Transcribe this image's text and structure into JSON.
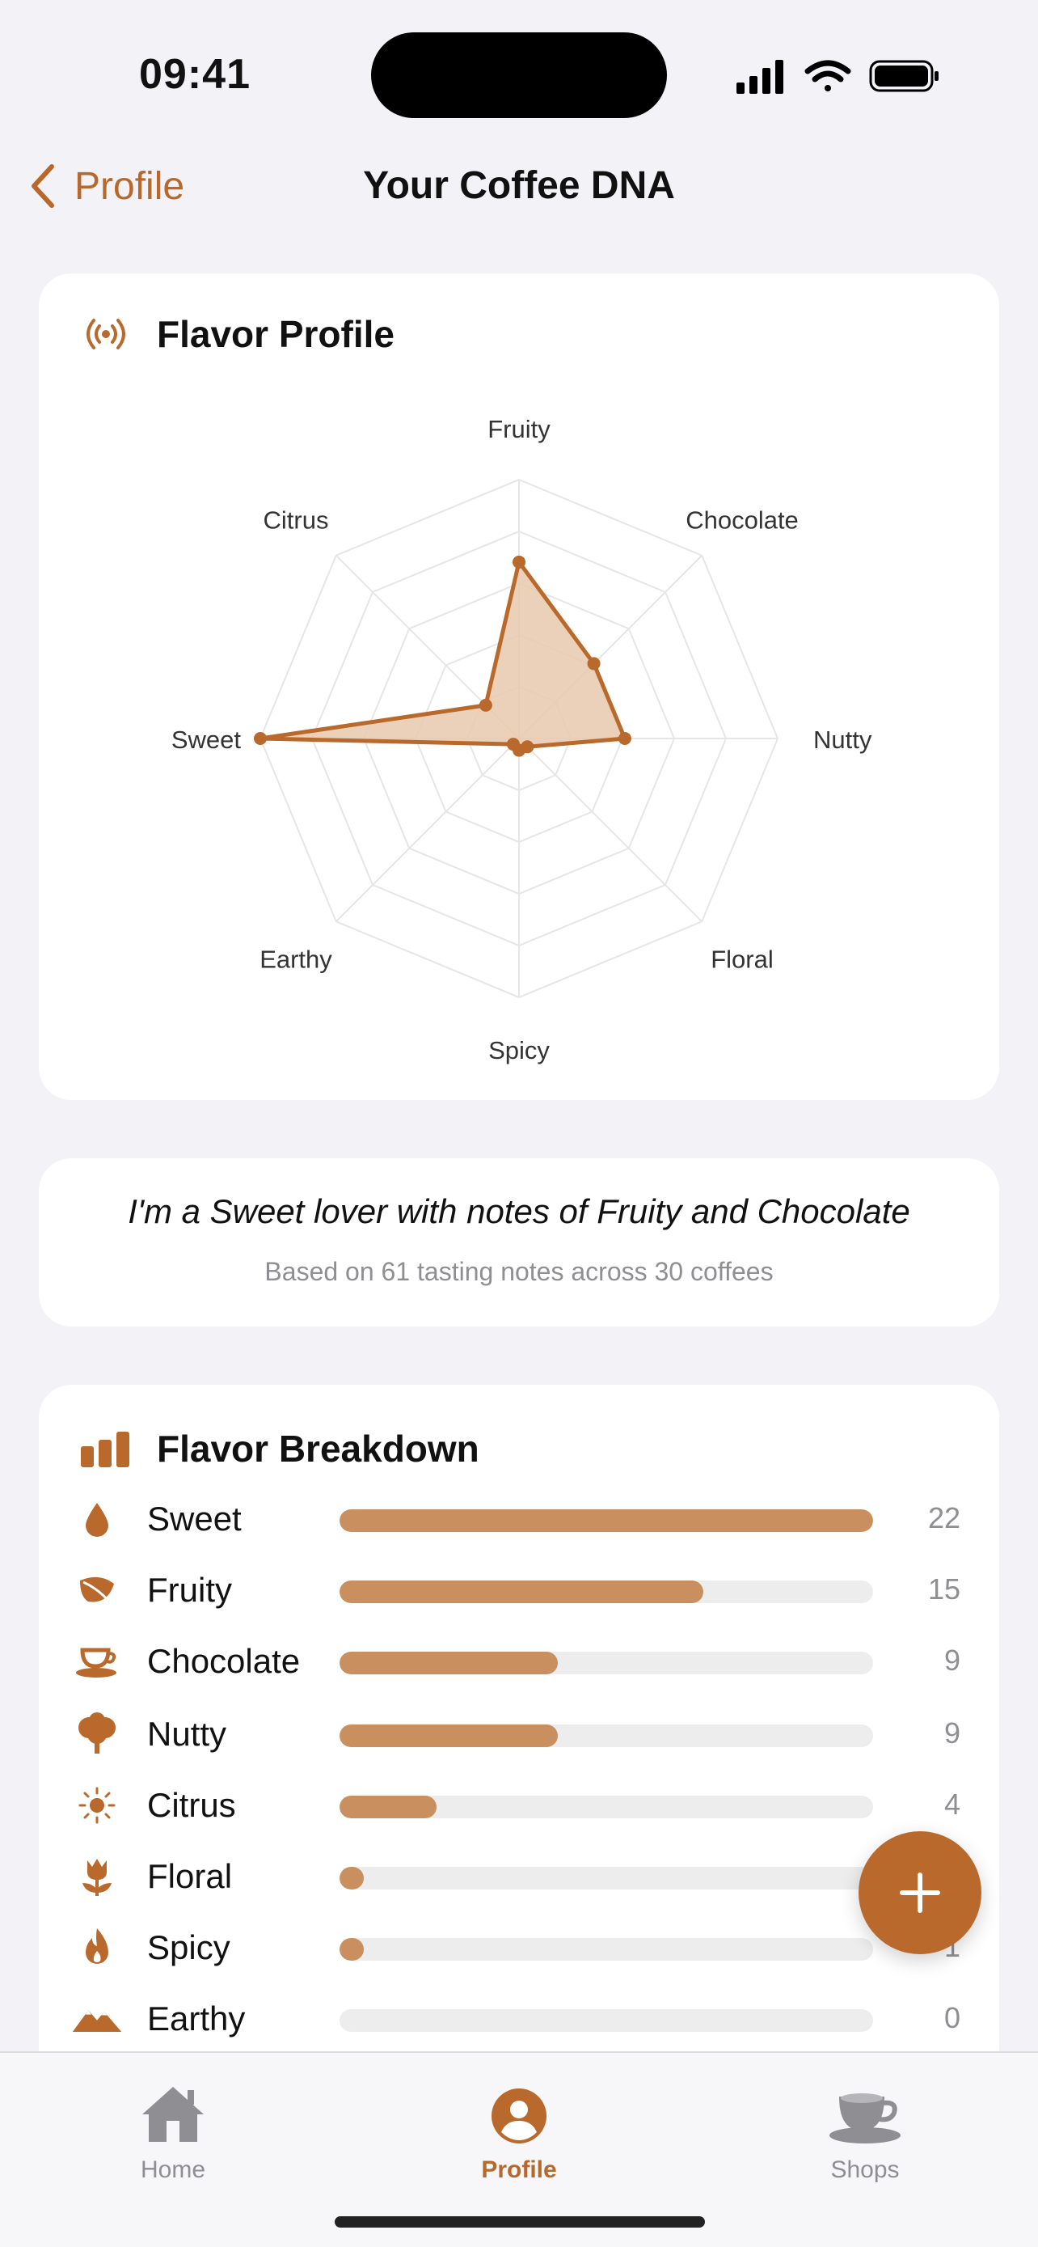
{
  "status_bar": {
    "time": "09:41"
  },
  "nav": {
    "back_label": "Profile",
    "title": "Your Coffee DNA"
  },
  "flavor_profile": {
    "title": "Flavor Profile",
    "icon": "broadcast-icon"
  },
  "chart_data": {
    "type": "radar",
    "axes": [
      "Fruity",
      "Chocolate",
      "Nutty",
      "Floral",
      "Spicy",
      "Earthy",
      "Sweet",
      "Citrus"
    ],
    "values": [
      15,
      9,
      9,
      1,
      1,
      0,
      22,
      4
    ],
    "rmax": 22,
    "grid_rings": 5,
    "color": "#b9692b",
    "fill": "#e8c9ad"
  },
  "summary": {
    "headline": "I'm a Sweet lover with notes of Fruity and Chocolate",
    "subtitle": "Based on 61 tasting notes across 30 coffees"
  },
  "breakdown": {
    "title": "Flavor Breakdown",
    "icon": "bar-chart-icon",
    "max": 22,
    "items": [
      {
        "label": "Sweet",
        "count": "22",
        "value": 22,
        "icon": "drop-icon"
      },
      {
        "label": "Fruity",
        "count": "15",
        "value": 15,
        "icon": "leaf-icon"
      },
      {
        "label": "Chocolate",
        "count": "9",
        "value": 9,
        "icon": "cup-icon"
      },
      {
        "label": "Nutty",
        "count": "9",
        "value": 9,
        "icon": "tree-icon"
      },
      {
        "label": "Citrus",
        "count": "4",
        "value": 4,
        "icon": "sun-icon"
      },
      {
        "label": "Floral",
        "count": "1",
        "value": 1,
        "icon": "tulip-icon"
      },
      {
        "label": "Spicy",
        "count": "1",
        "value": 1,
        "icon": "flame-icon"
      },
      {
        "label": "Earthy",
        "count": "0",
        "value": 0,
        "icon": "mountain-icon"
      }
    ]
  },
  "colors": {
    "accent": "#b9682c",
    "bar": "#c98f5f",
    "track": "#ededed"
  },
  "tabs": [
    {
      "label": "Home",
      "icon": "house-icon",
      "active": false
    },
    {
      "label": "Profile",
      "icon": "person-circle-icon",
      "active": true
    },
    {
      "label": "Shops",
      "icon": "cup-saucer-icon",
      "active": false
    }
  ]
}
